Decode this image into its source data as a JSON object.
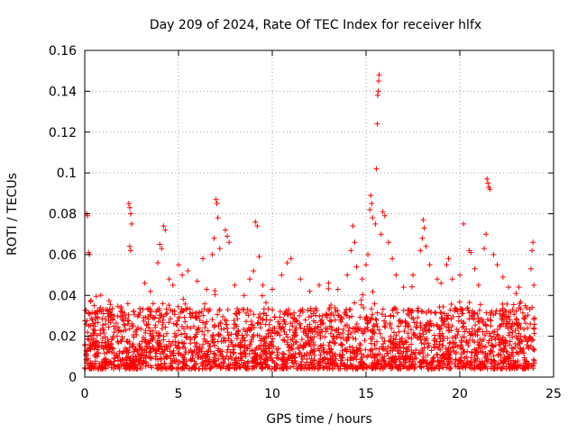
{
  "chart_data": {
    "type": "scatter",
    "title": "Day 209 of 2024, Rate Of TEC Index for receiver hlfx",
    "xlabel": "GPS time / hours",
    "ylabel": "ROTI / TECUs",
    "xlim": [
      0,
      25
    ],
    "ylim": [
      0,
      0.16
    ],
    "xticks": [
      0,
      5,
      10,
      15,
      20,
      25
    ],
    "xtick_labels": [
      "0",
      "5",
      "10",
      "15",
      "20",
      "25"
    ],
    "yticks": [
      0,
      0.02,
      0.04,
      0.06,
      0.08,
      0.1,
      0.12,
      0.14,
      0.16
    ],
    "ytick_labels": [
      "0",
      "0.02",
      "0.04",
      "0.06",
      "0.08",
      "0.1",
      "0.12",
      "0.14",
      "0.16"
    ],
    "grid": true,
    "marker": "+",
    "color": "#ff0000",
    "series": [
      {
        "name": "ROTI",
        "points": [
          [
            0.1,
            0.08
          ],
          [
            0.15,
            0.079
          ],
          [
            0.2,
            0.061
          ],
          [
            0.25,
            0.06
          ],
          [
            0.3,
            0.037
          ],
          [
            0.5,
            0.035
          ],
          [
            0.8,
            0.033
          ],
          [
            1.0,
            0.031
          ],
          [
            1.5,
            0.028
          ],
          [
            2.0,
            0.03
          ],
          [
            2.3,
            0.036
          ],
          [
            2.35,
            0.085
          ],
          [
            2.4,
            0.083
          ],
          [
            2.45,
            0.08
          ],
          [
            2.5,
            0.075
          ],
          [
            2.4,
            0.064
          ],
          [
            2.45,
            0.062
          ],
          [
            3.2,
            0.046
          ],
          [
            3.5,
            0.042
          ],
          [
            3.9,
            0.056
          ],
          [
            4.0,
            0.065
          ],
          [
            4.1,
            0.063
          ],
          [
            4.2,
            0.074
          ],
          [
            4.3,
            0.072
          ],
          [
            4.5,
            0.048
          ],
          [
            4.7,
            0.045
          ],
          [
            5.0,
            0.055
          ],
          [
            5.2,
            0.05
          ],
          [
            5.5,
            0.052
          ],
          [
            6.0,
            0.047
          ],
          [
            6.3,
            0.058
          ],
          [
            6.5,
            0.043
          ],
          [
            6.8,
            0.06
          ],
          [
            6.9,
            0.068
          ],
          [
            7.0,
            0.087
          ],
          [
            7.05,
            0.085
          ],
          [
            7.1,
            0.078
          ],
          [
            7.2,
            0.063
          ],
          [
            7.5,
            0.072
          ],
          [
            7.6,
            0.069
          ],
          [
            7.7,
            0.066
          ],
          [
            8.0,
            0.045
          ],
          [
            8.5,
            0.04
          ],
          [
            8.8,
            0.048
          ],
          [
            9.0,
            0.052
          ],
          [
            9.1,
            0.076
          ],
          [
            9.2,
            0.074
          ],
          [
            9.3,
            0.059
          ],
          [
            9.5,
            0.045
          ],
          [
            10.0,
            0.043
          ],
          [
            10.5,
            0.05
          ],
          [
            10.8,
            0.056
          ],
          [
            11.0,
            0.058
          ],
          [
            11.5,
            0.048
          ],
          [
            12.0,
            0.042
          ],
          [
            12.5,
            0.045
          ],
          [
            13.0,
            0.046
          ],
          [
            13.5,
            0.043
          ],
          [
            14.0,
            0.05
          ],
          [
            14.2,
            0.062
          ],
          [
            14.3,
            0.074
          ],
          [
            14.4,
            0.066
          ],
          [
            14.5,
            0.054
          ],
          [
            14.8,
            0.048
          ],
          [
            15.0,
            0.055
          ],
          [
            15.1,
            0.06
          ],
          [
            15.2,
            0.082
          ],
          [
            15.25,
            0.089
          ],
          [
            15.3,
            0.085
          ],
          [
            15.35,
            0.078
          ],
          [
            15.5,
            0.075
          ],
          [
            15.55,
            0.102
          ],
          [
            15.6,
            0.124
          ],
          [
            15.62,
            0.138
          ],
          [
            15.65,
            0.14
          ],
          [
            15.67,
            0.145
          ],
          [
            15.7,
            0.148
          ],
          [
            15.8,
            0.07
          ],
          [
            15.9,
            0.081
          ],
          [
            16.0,
            0.079
          ],
          [
            16.2,
            0.066
          ],
          [
            16.4,
            0.058
          ],
          [
            16.6,
            0.05
          ],
          [
            17.0,
            0.044
          ],
          [
            17.5,
            0.05
          ],
          [
            17.9,
            0.062
          ],
          [
            18.0,
            0.068
          ],
          [
            18.05,
            0.077
          ],
          [
            18.1,
            0.073
          ],
          [
            18.2,
            0.064
          ],
          [
            18.4,
            0.055
          ],
          [
            18.8,
            0.048
          ],
          [
            19.0,
            0.046
          ],
          [
            19.3,
            0.055
          ],
          [
            19.4,
            0.058
          ],
          [
            19.6,
            0.048
          ],
          [
            20.0,
            0.05
          ],
          [
            20.2,
            0.075
          ],
          [
            20.5,
            0.062
          ],
          [
            20.6,
            0.061
          ],
          [
            20.8,
            0.053
          ],
          [
            21.0,
            0.045
          ],
          [
            21.3,
            0.063
          ],
          [
            21.4,
            0.07
          ],
          [
            21.45,
            0.097
          ],
          [
            21.5,
            0.095
          ],
          [
            21.55,
            0.093
          ],
          [
            21.6,
            0.092
          ],
          [
            21.8,
            0.06
          ],
          [
            22.0,
            0.055
          ],
          [
            22.3,
            0.049
          ],
          [
            22.6,
            0.044
          ],
          [
            23.0,
            0.041
          ],
          [
            23.2,
            0.036
          ],
          [
            23.5,
            0.035
          ],
          [
            23.8,
            0.053
          ],
          [
            23.85,
            0.062
          ],
          [
            23.9,
            0.066
          ],
          [
            23.95,
            0.045
          ]
        ],
        "background_band": {
          "x_range": [
            0,
            24
          ],
          "y_center": 0.015,
          "y_spread": 0.012,
          "description": "dense cloud of ROTI samples across the full day"
        }
      }
    ]
  }
}
